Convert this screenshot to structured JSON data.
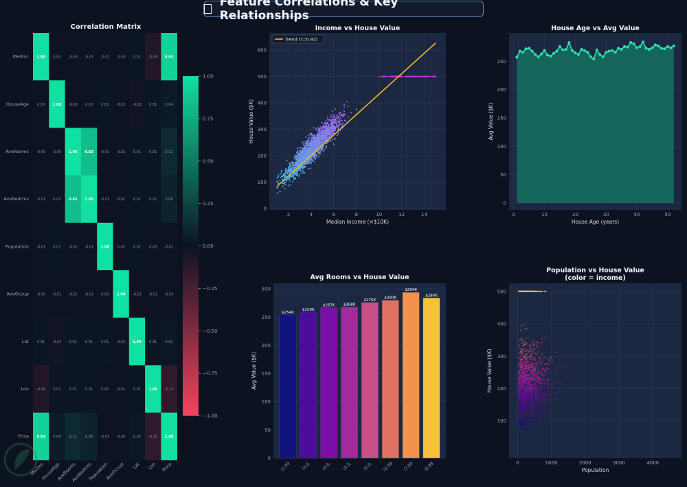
{
  "page_title": "Feature Correlations & Key Relationships",
  "colors": {
    "background": "#0d1220",
    "panel": "#1c2841",
    "accent": "#12e0a0",
    "negative": "#f7435f",
    "trend": "#f5b731"
  },
  "chart_data": [
    {
      "type": "heatmap",
      "title": "Correlation Matrix",
      "labels": [
        "MedInc",
        "HouseAge",
        "AveRooms",
        "AveBedrms",
        "Population",
        "AveOccup",
        "Lat",
        "Lon",
        "Price"
      ],
      "cell_labels": [
        [
          "1.00",
          "0.00",
          "-0.00",
          "-0.01",
          "-0.01",
          "-0.00",
          "0.01",
          "-0.09",
          "0.93"
        ],
        [
          "0.00",
          "1.00",
          "-0.00",
          "0.00",
          "0.01",
          "-0.01",
          "-0.02",
          "0.01",
          "0.04"
        ],
        [
          "-0.00",
          "-0.00",
          "1.00",
          "0.83",
          "-0.01",
          "-0.01",
          "0.01",
          "0.01",
          "0.11"
        ],
        [
          "-0.01",
          "0.00",
          "0.83",
          "1.00",
          "-0.01",
          "-0.01",
          "0.01",
          "0.01",
          "0.08"
        ],
        [
          "-0.01",
          "0.01",
          "-0.01",
          "-0.01",
          "1.00",
          "0.00",
          "0.01",
          "0.00",
          "-0.01"
        ],
        [
          "-0.00",
          "-0.01",
          "-0.01",
          "-0.01",
          "0.00",
          "1.00",
          "-0.01",
          "-0.01",
          "-0.00"
        ],
        [
          "0.01",
          "-0.02",
          "0.01",
          "0.01",
          "0.01",
          "-0.01",
          "1.00",
          "0.01",
          "0.02"
        ],
        [
          "-0.09",
          "0.01",
          "0.01",
          "0.01",
          "0.00",
          "-0.01",
          "0.01",
          "1.00",
          "-0.15"
        ],
        [
          "0.93",
          "0.04",
          "0.11",
          "0.08",
          "-0.01",
          "-0.00",
          "0.02",
          "-0.15",
          "1.00"
        ]
      ],
      "colorbar": {
        "range": [
          -1,
          1
        ],
        "ticks": [
          "1.00",
          "0.75",
          "0.50",
          "0.25",
          "0.00",
          "−0.25",
          "−0.50",
          "−0.75",
          "−1.00"
        ]
      }
    },
    {
      "type": "scatter",
      "title": "Income vs House Value",
      "xlabel": "Median Income (×$10K)",
      "ylabel": "House Value ($K)",
      "xlim": [
        0.3,
        15.9
      ],
      "ylim": [
        -5,
        665
      ],
      "xticks": [
        "2",
        "4",
        "6",
        "8",
        "10",
        "12",
        "14"
      ],
      "yticks": [
        "0",
        "100",
        "200",
        "300",
        "400",
        "500",
        "600"
      ],
      "legend": "Trend (r=0.93)",
      "trend_line": {
        "x": [
          1.0,
          15.0
        ],
        "y": [
          85,
          627
        ]
      },
      "points_description": "approximately 2000 points, values rise with income, capped at 500 for incomes above 9.5"
    },
    {
      "type": "area",
      "title": "House Age vs Avg Value",
      "xlabel": "House Age (years)",
      "ylabel": "Avg Value ($K)",
      "xlim": [
        -1.5,
        54.5
      ],
      "ylim": [
        -12,
        300
      ],
      "xticks": [
        "0",
        "10",
        "20",
        "30",
        "40",
        "50"
      ],
      "yticks": [
        "0",
        "50",
        "100",
        "150",
        "200",
        "250"
      ],
      "x": [
        1,
        2,
        3,
        4,
        5,
        6,
        7,
        8,
        9,
        10,
        11,
        12,
        13,
        14,
        15,
        16,
        17,
        18,
        19,
        20,
        21,
        22,
        23,
        24,
        25,
        26,
        27,
        28,
        29,
        30,
        31,
        32,
        33,
        34,
        35,
        36,
        37,
        38,
        39,
        40,
        41,
        42,
        43,
        44,
        45,
        46,
        47,
        48,
        49,
        50,
        51,
        52
      ],
      "y": [
        257,
        268,
        266,
        272,
        273,
        268,
        262,
        258,
        263,
        269,
        261,
        259,
        264,
        268,
        276,
        270,
        271,
        283,
        269,
        265,
        262,
        271,
        269,
        266,
        258,
        254,
        270,
        262,
        258,
        266,
        268,
        269,
        266,
        273,
        271,
        276,
        275,
        283,
        281,
        274,
        276,
        284,
        273,
        271,
        274,
        279,
        277,
        273,
        272,
        276,
        274,
        277
      ]
    },
    {
      "type": "bar",
      "title": "Avg Rooms vs House Value",
      "xlabel": "",
      "ylabel": "Avg Value ($K)",
      "ylim": [
        0,
        310
      ],
      "yticks": [
        "0",
        "50",
        "100",
        "150",
        "200",
        "250",
        "300"
      ],
      "categories": [
        "(1.99",
        "(3.0,",
        "(4.0,",
        "(5.0,",
        "(6.0,",
        "(6.99",
        "(7.99",
        "(8.99"
      ],
      "values": [
        254,
        259,
        267,
        268,
        276,
        280,
        294,
        284
      ],
      "value_labels": [
        "$254K",
        "$259K",
        "$267K",
        "$268K",
        "$276K",
        "$280K",
        "$294K",
        "$284K"
      ],
      "bar_colors": [
        "#12137e",
        "#4b0d9a",
        "#7c0ea8",
        "#a32a9b",
        "#c64f85",
        "#e0705f",
        "#f1934b",
        "#f6c23a"
      ]
    },
    {
      "type": "scatter",
      "title": "Population vs House Value",
      "subtitle": "(color = income)",
      "xlabel": "Population",
      "ylabel": "House Value ($K)",
      "xlim": [
        -250,
        4850
      ],
      "ylim": [
        -15,
        525
      ],
      "xticks": [
        "0",
        "1000",
        "2000",
        "3000",
        "4000"
      ],
      "yticks": [
        "100",
        "200",
        "300",
        "400",
        "500"
      ],
      "points_description": "approximately 1600 points concentrated below population 1500, capped band at 500"
    }
  ]
}
